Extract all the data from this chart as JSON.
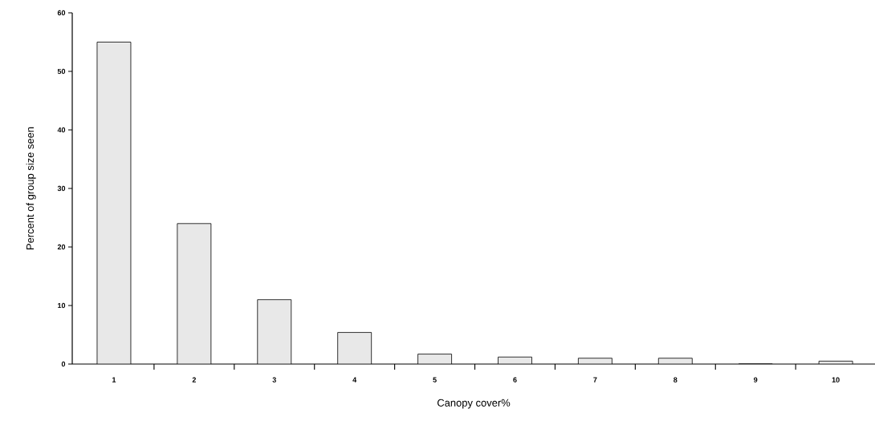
{
  "chart_data": {
    "type": "bar",
    "xlabel": "Canopy cover%",
    "ylabel": "Percent of group size seen",
    "categories": [
      "1",
      "2",
      "3",
      "4",
      "5",
      "6",
      "7",
      "8",
      "9",
      "10"
    ],
    "values": [
      55,
      24,
      11,
      5.4,
      1.7,
      1.2,
      1.0,
      1.0,
      0,
      0.5
    ],
    "color": "#e8e8e8",
    "ylim": [
      0,
      60
    ],
    "yticks": [
      0,
      10,
      20,
      30,
      40,
      50,
      60
    ]
  }
}
